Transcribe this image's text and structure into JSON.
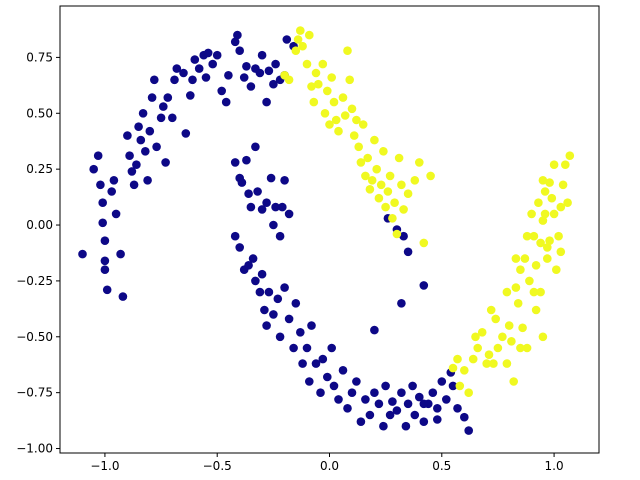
{
  "chart_data": {
    "type": "scatter",
    "title": "",
    "xlabel": "",
    "ylabel": "",
    "xlim": [
      -1.2,
      1.2
    ],
    "ylim": [
      -1.02,
      0.98
    ],
    "grid": false,
    "legend": null,
    "x_ticks": [
      -1.0,
      -0.5,
      0.0,
      0.5,
      1.0
    ],
    "x_tick_labels": [
      "−1.0",
      "−0.5",
      "0.0",
      "0.5",
      "1.0"
    ],
    "y_ticks": [
      -1.0,
      -0.75,
      -0.5,
      -0.25,
      0.0,
      0.25,
      0.5,
      0.75
    ],
    "y_tick_labels": [
      "−1.00",
      "−0.75",
      "−0.50",
      "−0.25",
      "0.00",
      "0.25",
      "0.50",
      "0.75"
    ],
    "colors": {
      "class_0": "#0d0887",
      "class_1": "#f0f921",
      "frame": "#000000"
    },
    "series": [
      {
        "color": "#0d0887",
        "points": [
          [
            -1.1,
            -0.13
          ],
          [
            -1.05,
            0.25
          ],
          [
            -1.03,
            0.31
          ],
          [
            -1.02,
            0.18
          ],
          [
            -1.01,
            0.1
          ],
          [
            -1.01,
            0.01
          ],
          [
            -1.0,
            -0.07
          ],
          [
            -1.0,
            -0.16
          ],
          [
            -1.0,
            -0.2
          ],
          [
            -0.99,
            -0.29
          ],
          [
            -0.97,
            0.15
          ],
          [
            -0.96,
            0.2
          ],
          [
            -0.95,
            0.05
          ],
          [
            -0.93,
            -0.13
          ],
          [
            -0.92,
            -0.32
          ],
          [
            -0.9,
            0.4
          ],
          [
            -0.89,
            0.31
          ],
          [
            -0.88,
            0.24
          ],
          [
            -0.87,
            0.18
          ],
          [
            -0.86,
            0.27
          ],
          [
            -0.85,
            0.44
          ],
          [
            -0.84,
            0.38
          ],
          [
            -0.83,
            0.5
          ],
          [
            -0.82,
            0.33
          ],
          [
            -0.81,
            0.2
          ],
          [
            -0.8,
            0.42
          ],
          [
            -0.79,
            0.57
          ],
          [
            -0.78,
            0.65
          ],
          [
            -0.77,
            0.35
          ],
          [
            -0.75,
            0.48
          ],
          [
            -0.74,
            0.53
          ],
          [
            -0.73,
            0.28
          ],
          [
            -0.72,
            0.57
          ],
          [
            -0.7,
            0.48
          ],
          [
            -0.69,
            0.65
          ],
          [
            -0.68,
            0.7
          ],
          [
            -0.65,
            0.68
          ],
          [
            -0.64,
            0.41
          ],
          [
            -0.62,
            0.58
          ],
          [
            -0.61,
            0.65
          ],
          [
            -0.6,
            0.74
          ],
          [
            -0.58,
            0.7
          ],
          [
            -0.56,
            0.76
          ],
          [
            -0.55,
            0.66
          ],
          [
            -0.54,
            0.77
          ],
          [
            -0.52,
            0.72
          ],
          [
            -0.5,
            0.76
          ],
          [
            -0.48,
            0.6
          ],
          [
            -0.46,
            0.55
          ],
          [
            -0.45,
            0.67
          ],
          [
            -0.42,
            0.82
          ],
          [
            -0.41,
            0.85
          ],
          [
            -0.4,
            0.78
          ],
          [
            -0.38,
            0.66
          ],
          [
            -0.37,
            0.71
          ],
          [
            -0.35,
            0.62
          ],
          [
            -0.33,
            0.7
          ],
          [
            -0.31,
            0.68
          ],
          [
            -0.3,
            0.76
          ],
          [
            -0.28,
            0.55
          ],
          [
            -0.27,
            0.69
          ],
          [
            -0.25,
            0.63
          ],
          [
            -0.24,
            0.72
          ],
          [
            -0.22,
            0.65
          ],
          [
            -0.2,
            0.67
          ],
          [
            -0.19,
            0.83
          ],
          [
            -0.16,
            0.8
          ],
          [
            -0.42,
            0.28
          ],
          [
            -0.4,
            0.21
          ],
          [
            -0.39,
            0.19
          ],
          [
            -0.37,
            0.29
          ],
          [
            -0.36,
            0.14
          ],
          [
            -0.35,
            0.08
          ],
          [
            -0.33,
            0.35
          ],
          [
            -0.32,
            0.15
          ],
          [
            -0.3,
            0.07
          ],
          [
            -0.28,
            0.1
          ],
          [
            -0.26,
            0.21
          ],
          [
            -0.25,
            0.0
          ],
          [
            -0.24,
            0.08
          ],
          [
            -0.22,
            -0.05
          ],
          [
            -0.21,
            0.08
          ],
          [
            -0.2,
            0.2
          ],
          [
            -0.18,
            0.05
          ],
          [
            -0.42,
            -0.05
          ],
          [
            -0.4,
            -0.1
          ],
          [
            -0.38,
            -0.2
          ],
          [
            -0.36,
            -0.18
          ],
          [
            -0.34,
            -0.15
          ],
          [
            -0.33,
            -0.25
          ],
          [
            -0.31,
            -0.3
          ],
          [
            -0.3,
            -0.22
          ],
          [
            -0.29,
            -0.38
          ],
          [
            -0.28,
            -0.45
          ],
          [
            -0.27,
            -0.3
          ],
          [
            -0.25,
            -0.4
          ],
          [
            -0.23,
            -0.33
          ],
          [
            -0.22,
            -0.5
          ],
          [
            -0.2,
            -0.28
          ],
          [
            -0.18,
            -0.42
          ],
          [
            -0.16,
            -0.55
          ],
          [
            -0.15,
            -0.35
          ],
          [
            -0.13,
            -0.48
          ],
          [
            -0.12,
            -0.62
          ],
          [
            -0.1,
            -0.55
          ],
          [
            -0.09,
            -0.7
          ],
          [
            -0.08,
            -0.45
          ],
          [
            -0.06,
            -0.62
          ],
          [
            -0.04,
            -0.75
          ],
          [
            -0.03,
            -0.6
          ],
          [
            -0.01,
            -0.68
          ],
          [
            0.01,
            -0.55
          ],
          [
            0.02,
            -0.72
          ],
          [
            0.04,
            -0.78
          ],
          [
            0.06,
            -0.65
          ],
          [
            0.08,
            -0.82
          ],
          [
            0.1,
            -0.75
          ],
          [
            0.12,
            -0.7
          ],
          [
            0.14,
            -0.88
          ],
          [
            0.16,
            -0.78
          ],
          [
            0.18,
            -0.85
          ],
          [
            0.2,
            -0.75
          ],
          [
            0.22,
            -0.8
          ],
          [
            0.24,
            -0.9
          ],
          [
            0.25,
            -0.72
          ],
          [
            0.27,
            -0.85
          ],
          [
            0.28,
            -0.79
          ],
          [
            0.3,
            -0.83
          ],
          [
            0.32,
            -0.75
          ],
          [
            0.34,
            -0.9
          ],
          [
            0.35,
            -0.8
          ],
          [
            0.37,
            -0.72
          ],
          [
            0.38,
            -0.85
          ],
          [
            0.4,
            -0.77
          ],
          [
            0.42,
            -0.88
          ],
          [
            0.44,
            -0.8
          ],
          [
            0.46,
            -0.75
          ],
          [
            0.48,
            -0.82
          ],
          [
            0.5,
            -0.7
          ],
          [
            0.52,
            -0.78
          ],
          [
            0.55,
            -0.72
          ],
          [
            0.57,
            -0.82
          ],
          [
            0.6,
            -0.86
          ],
          [
            0.62,
            -0.92
          ],
          [
            0.54,
            -0.66
          ],
          [
            0.48,
            -0.87
          ],
          [
            0.42,
            -0.8
          ],
          [
            0.32,
            -0.35
          ],
          [
            0.42,
            -0.27
          ],
          [
            0.2,
            -0.47
          ],
          [
            0.3,
            -0.02
          ],
          [
            0.33,
            -0.05
          ],
          [
            0.35,
            -0.12
          ],
          [
            0.26,
            0.03
          ]
        ]
      },
      {
        "color": "#f0f921",
        "points": [
          [
            -0.2,
            0.67
          ],
          [
            -0.18,
            0.65
          ],
          [
            -0.15,
            0.78
          ],
          [
            -0.14,
            0.83
          ],
          [
            -0.13,
            0.87
          ],
          [
            -0.12,
            0.8
          ],
          [
            -0.1,
            0.72
          ],
          [
            -0.09,
            0.85
          ],
          [
            -0.08,
            0.62
          ],
          [
            -0.07,
            0.55
          ],
          [
            -0.06,
            0.68
          ],
          [
            -0.05,
            0.63
          ],
          [
            -0.03,
            0.72
          ],
          [
            -0.02,
            0.5
          ],
          [
            -0.01,
            0.6
          ],
          [
            0.0,
            0.45
          ],
          [
            0.01,
            0.66
          ],
          [
            0.02,
            0.55
          ],
          [
            0.03,
            0.47
          ],
          [
            0.04,
            0.42
          ],
          [
            0.06,
            0.57
          ],
          [
            0.07,
            0.49
          ],
          [
            0.08,
            0.78
          ],
          [
            0.09,
            0.65
          ],
          [
            0.1,
            0.52
          ],
          [
            0.11,
            0.4
          ],
          [
            0.12,
            0.47
          ],
          [
            0.13,
            0.35
          ],
          [
            0.14,
            0.28
          ],
          [
            0.15,
            0.45
          ],
          [
            0.16,
            0.22
          ],
          [
            0.17,
            0.3
          ],
          [
            0.18,
            0.16
          ],
          [
            0.19,
            0.2
          ],
          [
            0.2,
            0.38
          ],
          [
            0.21,
            0.25
          ],
          [
            0.22,
            0.12
          ],
          [
            0.23,
            0.18
          ],
          [
            0.24,
            0.33
          ],
          [
            0.25,
            0.08
          ],
          [
            0.26,
            0.15
          ],
          [
            0.27,
            0.22
          ],
          [
            0.28,
            0.03
          ],
          [
            0.29,
            0.1
          ],
          [
            0.3,
            -0.04
          ],
          [
            0.31,
            0.3
          ],
          [
            0.32,
            0.18
          ],
          [
            0.33,
            0.07
          ],
          [
            0.35,
            0.14
          ],
          [
            0.38,
            0.2
          ],
          [
            0.4,
            0.28
          ],
          [
            0.42,
            -0.08
          ],
          [
            0.45,
            0.22
          ],
          [
            0.55,
            -0.64
          ],
          [
            0.57,
            -0.6
          ],
          [
            0.58,
            -0.72
          ],
          [
            0.6,
            -0.65
          ],
          [
            0.62,
            -0.75
          ],
          [
            0.64,
            -0.6
          ],
          [
            0.65,
            -0.5
          ],
          [
            0.66,
            -0.55
          ],
          [
            0.68,
            -0.48
          ],
          [
            0.7,
            -0.62
          ],
          [
            0.71,
            -0.58
          ],
          [
            0.72,
            -0.38
          ],
          [
            0.74,
            -0.42
          ],
          [
            0.75,
            -0.55
          ],
          [
            0.77,
            -0.5
          ],
          [
            0.79,
            -0.3
          ],
          [
            0.8,
            -0.45
          ],
          [
            0.81,
            -0.52
          ],
          [
            0.82,
            -0.7
          ],
          [
            0.83,
            -0.28
          ],
          [
            0.84,
            -0.35
          ],
          [
            0.85,
            -0.2
          ],
          [
            0.86,
            -0.46
          ],
          [
            0.87,
            -0.15
          ],
          [
            0.88,
            -0.05
          ],
          [
            0.89,
            -0.25
          ],
          [
            0.9,
            0.05
          ],
          [
            0.91,
            -0.3
          ],
          [
            0.92,
            -0.18
          ],
          [
            0.93,
            0.1
          ],
          [
            0.94,
            -0.08
          ],
          [
            0.95,
            0.02
          ],
          [
            0.96,
            0.15
          ],
          [
            0.97,
            -0.1
          ],
          [
            0.98,
            0.19
          ],
          [
            0.99,
            0.12
          ],
          [
            1.0,
            0.27
          ],
          [
            1.01,
            -0.2
          ],
          [
            1.02,
            -0.05
          ],
          [
            1.03,
            0.08
          ],
          [
            1.04,
            0.18
          ],
          [
            1.05,
            0.27
          ],
          [
            1.06,
            0.1
          ],
          [
            1.07,
            0.31
          ],
          [
            0.92,
            -0.38
          ],
          [
            0.95,
            -0.5
          ],
          [
            0.88,
            -0.55
          ],
          [
            0.79,
            -0.62
          ],
          [
            0.73,
            -0.62
          ],
          [
            0.85,
            -0.55
          ],
          [
            0.95,
            0.2
          ],
          [
            0.97,
            -0.15
          ],
          [
            1.0,
            0.05
          ],
          [
            0.94,
            -0.3
          ],
          [
            0.83,
            -0.15
          ],
          [
            0.98,
            -0.07
          ],
          [
            0.91,
            -0.05
          ],
          [
            1.03,
            -0.12
          ],
          [
            0.96,
            0.05
          ]
        ]
      }
    ]
  }
}
